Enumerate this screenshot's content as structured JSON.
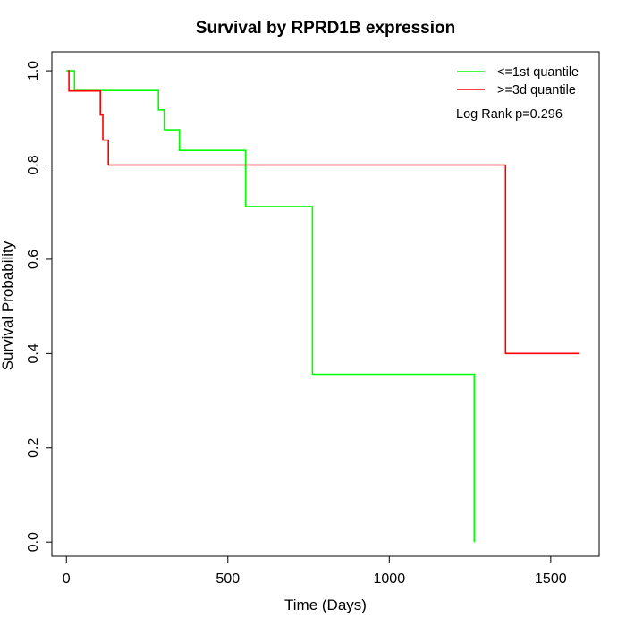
{
  "chart_data": {
    "type": "line",
    "title": "Survival by RPRD1B expression",
    "xlabel": "Time (Days)",
    "ylabel": "Survival Probability",
    "xlim": [
      -45,
      1650
    ],
    "ylim": [
      -0.03,
      1.04
    ],
    "xticks": [
      0,
      500,
      1000,
      1500
    ],
    "yticks": [
      0.0,
      0.2,
      0.4,
      0.6,
      0.8,
      1.0
    ],
    "xtick_labels": [
      "0",
      "500",
      "1000",
      "1500"
    ],
    "ytick_labels": [
      "0.0",
      "0.2",
      "0.4",
      "0.6",
      "0.8",
      "1.0"
    ],
    "grid": false,
    "legend_position": "top-right",
    "annotation": "Log Rank p=0.296",
    "series": [
      {
        "name": "<=1st quantile",
        "color": "#00ff00",
        "step": true,
        "points": [
          [
            0,
            1.0
          ],
          [
            25,
            1.0
          ],
          [
            25,
            0.958
          ],
          [
            285,
            0.958
          ],
          [
            285,
            0.917
          ],
          [
            303,
            0.917
          ],
          [
            303,
            0.875
          ],
          [
            350,
            0.875
          ],
          [
            350,
            0.831
          ],
          [
            555,
            0.831
          ],
          [
            555,
            0.712
          ],
          [
            762,
            0.712
          ],
          [
            762,
            0.356
          ],
          [
            1263,
            0.356
          ],
          [
            1263,
            0.0
          ]
        ]
      },
      {
        "name": ">=3d quantile",
        "color": "#ff0000",
        "step": true,
        "points": [
          [
            5,
            1.0
          ],
          [
            8,
            1.0
          ],
          [
            8,
            0.957
          ],
          [
            105,
            0.957
          ],
          [
            105,
            0.906
          ],
          [
            113,
            0.906
          ],
          [
            113,
            0.853
          ],
          [
            130,
            0.853
          ],
          [
            130,
            0.8
          ],
          [
            1360,
            0.8
          ],
          [
            1360,
            0.4
          ],
          [
            1590,
            0.4
          ]
        ]
      }
    ]
  }
}
